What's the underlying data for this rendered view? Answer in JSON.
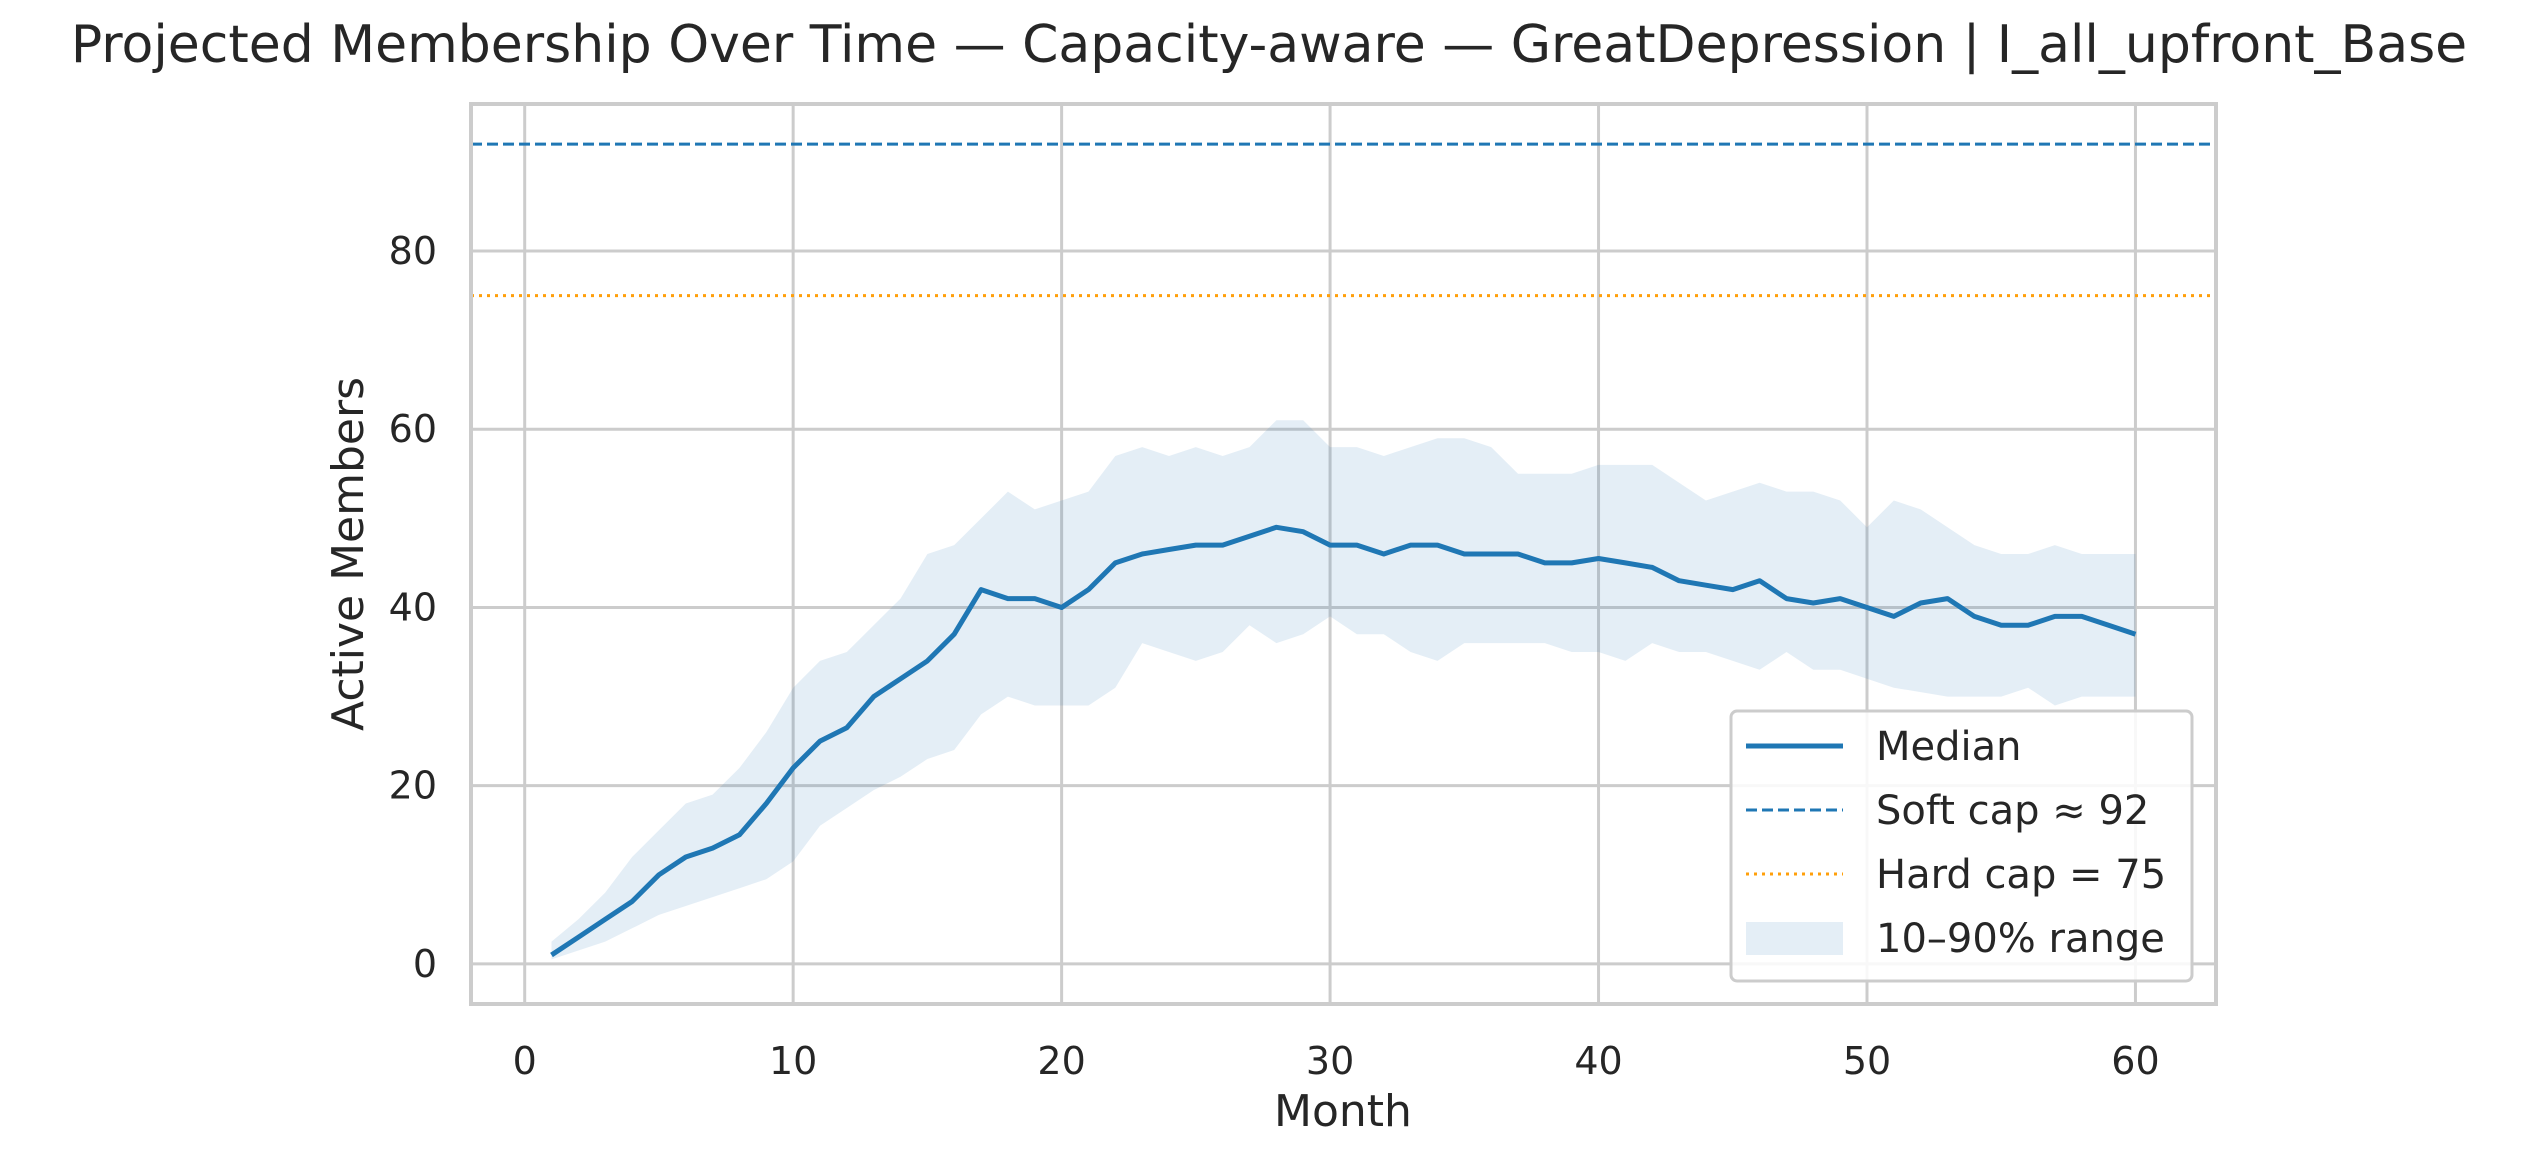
{
  "chart_data": {
    "type": "line",
    "title": "Projected Membership Over Time — Capacity-aware — GreatDepression | I_all_upfront_Base",
    "xlabel": "Month",
    "ylabel": "Active Members",
    "xlim": [
      -2,
      63
    ],
    "ylim": [
      -4.5,
      96.5
    ],
    "xticks": [
      "0",
      "10",
      "20",
      "30",
      "40",
      "50",
      "60"
    ],
    "yticks": [
      "0",
      "20",
      "40",
      "60",
      "80"
    ],
    "grid": true,
    "legend_position": "lower-right",
    "x": [
      1,
      2,
      3,
      4,
      5,
      6,
      7,
      8,
      9,
      10,
      11,
      12,
      13,
      14,
      15,
      16,
      17,
      18,
      19,
      20,
      21,
      22,
      23,
      24,
      25,
      26,
      27,
      28,
      29,
      30,
      31,
      32,
      33,
      34,
      35,
      36,
      37,
      38,
      39,
      40,
      41,
      42,
      43,
      44,
      45,
      46,
      47,
      48,
      49,
      50,
      51,
      52,
      53,
      54,
      55,
      56,
      57,
      58,
      59,
      60
    ],
    "series": [
      {
        "name": "Median",
        "color": "#1f77b4",
        "values": [
          1,
          3,
          5,
          7,
          10,
          12,
          13,
          14.5,
          18,
          22,
          25,
          26.5,
          30,
          32,
          34,
          37,
          42,
          41,
          41,
          40,
          42,
          45,
          46,
          46.5,
          47,
          47,
          48,
          49,
          48.5,
          47,
          47,
          46,
          47,
          47,
          46,
          46,
          46,
          45,
          45,
          45.5,
          45,
          44.5,
          43,
          42.5,
          42,
          43,
          41,
          40.5,
          41,
          40,
          39,
          40.5,
          41,
          39,
          38,
          38,
          39,
          39,
          38,
          37
        ]
      }
    ],
    "band": {
      "name": "10–90% range",
      "color": "#1f77b4",
      "lower": [
        0.5,
        1.5,
        2.5,
        4,
        5.5,
        6.5,
        7.5,
        8.5,
        9.5,
        11.5,
        15.5,
        17.5,
        19.5,
        21,
        23,
        24,
        28,
        30,
        29,
        29,
        29,
        31,
        36,
        35,
        34,
        35,
        38,
        36,
        37,
        39,
        37,
        37,
        35,
        34,
        36,
        36,
        36,
        36,
        35,
        35,
        34,
        36,
        35,
        35,
        34,
        33,
        35,
        33,
        33,
        32,
        31,
        30.5,
        30,
        30,
        30,
        31,
        29,
        30,
        30,
        30
      ],
      "upper": [
        2.5,
        5,
        8,
        12,
        15,
        18,
        19,
        22,
        26,
        31,
        34,
        35,
        38,
        41,
        46,
        47,
        50,
        53,
        51,
        52,
        53,
        57,
        58,
        57,
        58,
        57,
        58,
        61,
        61,
        58,
        58,
        57,
        58,
        59,
        59,
        58,
        55,
        55,
        55,
        56,
        56,
        56,
        54,
        52,
        53,
        54,
        53,
        53,
        52,
        49,
        52,
        51,
        49,
        47,
        46,
        46,
        47,
        46,
        46,
        46
      ]
    },
    "reference_lines": [
      {
        "name": "Soft cap ≈ 92",
        "y": 92,
        "color": "#1f77b4",
        "style": "dashed"
      },
      {
        "name": "Hard cap = 75",
        "y": 75,
        "color": "#ff9f0a",
        "style": "dotted"
      }
    ]
  }
}
